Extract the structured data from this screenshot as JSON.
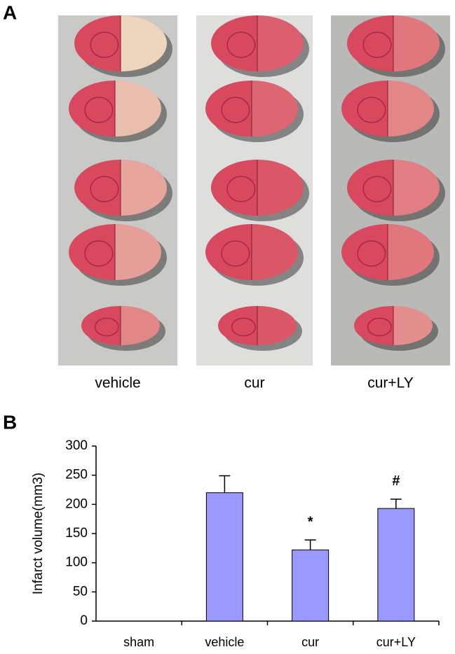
{
  "panel_a": {
    "label": "A",
    "groups": [
      "vehicle",
      "cur",
      "cur+LY"
    ]
  },
  "panel_b": {
    "label": "B"
  },
  "chart_data": {
    "type": "bar",
    "y_label": "Infarct volume(mm3)",
    "categories": [
      "sham",
      "vehicle",
      "cur",
      "cur+LY"
    ],
    "values": [
      0,
      220,
      122,
      193
    ],
    "errors": [
      null,
      29,
      17,
      16
    ],
    "color": "#9999ff",
    "ylim": [
      0,
      300
    ],
    "yticks": [
      0,
      50,
      100,
      150,
      200,
      250,
      300
    ],
    "grid": false,
    "annotations": [
      {
        "text": "*",
        "category": "cur"
      },
      {
        "text": "#",
        "category": "cur+LY"
      }
    ]
  }
}
